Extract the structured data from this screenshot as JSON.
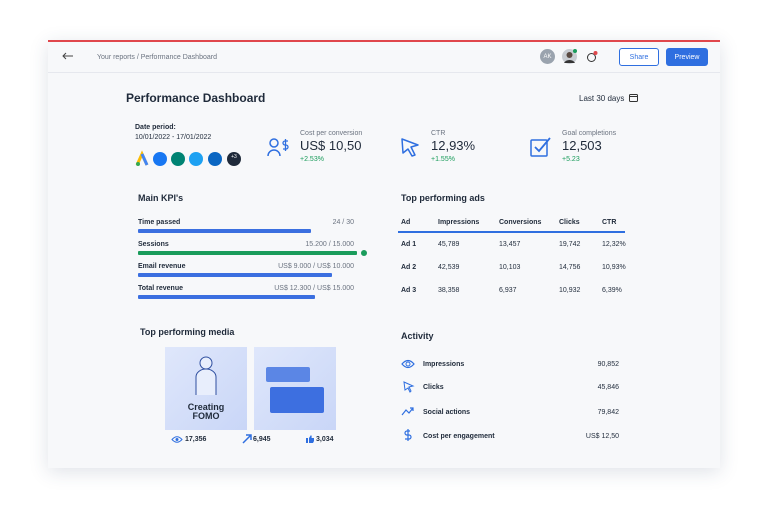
{
  "header": {
    "breadcrumb": "Your reports / Performance Dashboard",
    "avatar": "AK",
    "buttons": [
      "Share",
      "Preview"
    ]
  },
  "title": "Performance Dashboard",
  "date_range": "Last 30 days",
  "date_period": {
    "label": "Date period:",
    "value": "10/01/2022 - 17/01/2022",
    "more": "+3"
  },
  "kpis": [
    {
      "label": "Cost per conversion",
      "value": "US$ 10,50",
      "change": "+2.53%"
    },
    {
      "label": "CTR",
      "value": "12,93%",
      "change": "+1.55%"
    },
    {
      "label": "Goal completions",
      "value": "12,503",
      "change": "+5.23"
    }
  ],
  "main_kpis": {
    "title": "Main KPI's",
    "rows": [
      {
        "label": "Time passed",
        "value": 24,
        "max": 30,
        "text": "24 / 30",
        "color": "#3b6fe0"
      },
      {
        "label": "Sessions",
        "value": 15200,
        "max": 15000,
        "text": "15.200 / 15.000",
        "color": "#1a9c5b"
      },
      {
        "label": "Email revenue",
        "value": 9000,
        "max": 10000,
        "text": "US$ 9.000 / US$ 10.000",
        "color": "#3b6fe0"
      },
      {
        "label": "Total revenue",
        "value": 12300,
        "max": 15000,
        "text": "US$ 12.300 / US$ 15.000",
        "color": "#3b6fe0"
      }
    ]
  },
  "ads": {
    "title": "Top performing ads",
    "columns": [
      "Ad",
      "Impressions",
      "Conversions",
      "Clicks",
      "CTR"
    ],
    "rows": [
      [
        "Ad 1",
        "45,789",
        "13,457",
        "19,742",
        "12,32%"
      ],
      [
        "Ad 2",
        "42,539",
        "10,103",
        "14,756",
        "10,93%"
      ],
      [
        "Ad 3",
        "38,358",
        "6,937",
        "10,932",
        "6,39%"
      ]
    ]
  },
  "media": {
    "title": "Top performing media",
    "image_text": "Creating FOMO",
    "stats": [
      "17,356",
      "6,945",
      "3,034"
    ]
  },
  "activity": {
    "title": "Activity",
    "rows": [
      {
        "label": "Impressions",
        "value": "90,852"
      },
      {
        "label": "Clicks",
        "value": "45,846"
      },
      {
        "label": "Social actions",
        "value": "79,842"
      },
      {
        "label": "Cost per engagement",
        "value": "US$ 12,50"
      }
    ]
  }
}
